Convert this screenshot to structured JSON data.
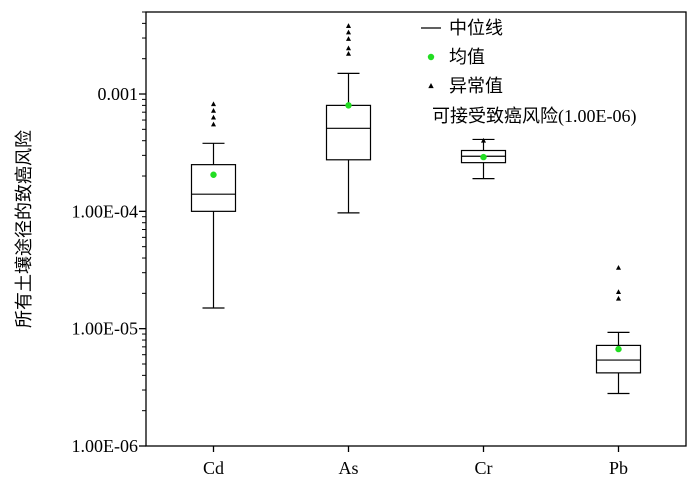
{
  "chart_data": {
    "type": "box",
    "ylabel": "所有土壤途径的致癌风险",
    "yscale": "log",
    "ylim": [
      1e-06,
      0.005
    ],
    "yticks": [
      {
        "value": 0.001,
        "label": "0.001"
      },
      {
        "value": 0.0001,
        "label": "1.00E-04"
      },
      {
        "value": 1e-05,
        "label": "1.00E-05"
      },
      {
        "value": 1e-06,
        "label": "1.00E-06"
      }
    ],
    "categories": [
      "Cd",
      "As",
      "Cr",
      "Pb"
    ],
    "boxes": [
      {
        "name": "Cd",
        "whisker_low": 1.5e-05,
        "q1": 0.0001,
        "median": 0.00014,
        "q3": 0.00025,
        "whisker_high": 0.00038,
        "mean": 0.000205,
        "outliers": [
          0.00055,
          0.00063,
          0.00072,
          0.00082
        ]
      },
      {
        "name": "As",
        "whisker_low": 9.7e-05,
        "q1": 0.000275,
        "median": 0.00051,
        "q3": 0.0008,
        "whisker_high": 0.0015,
        "mean": 0.0008,
        "outliers": [
          0.0022,
          0.00245,
          0.00295,
          0.00335,
          0.0038
        ]
      },
      {
        "name": "Cr",
        "whisker_low": 0.00019,
        "q1": 0.00026,
        "median": 0.000295,
        "q3": 0.00033,
        "whisker_high": 0.00041,
        "mean": 0.00029,
        "outliers": [
          0.0004
        ]
      },
      {
        "name": "Pb",
        "whisker_low": 2.8e-06,
        "q1": 4.2e-06,
        "median": 5.4e-06,
        "q3": 7.2e-06,
        "whisker_high": 9.3e-06,
        "mean": 6.7e-06,
        "outliers": [
          1.8e-05,
          2.05e-05,
          3.3e-05
        ]
      }
    ],
    "legend": {
      "placement": "top-right",
      "entries": [
        {
          "marker": "line",
          "label": "中位线"
        },
        {
          "marker": "dot",
          "label": "均值"
        },
        {
          "marker": "triangle",
          "label": "异常值"
        }
      ]
    },
    "annotation": "可接受致癌风险(1.00E-06)",
    "colors": {
      "mean": "#22dd22",
      "box": "#000000",
      "outlier": "#000000"
    }
  }
}
